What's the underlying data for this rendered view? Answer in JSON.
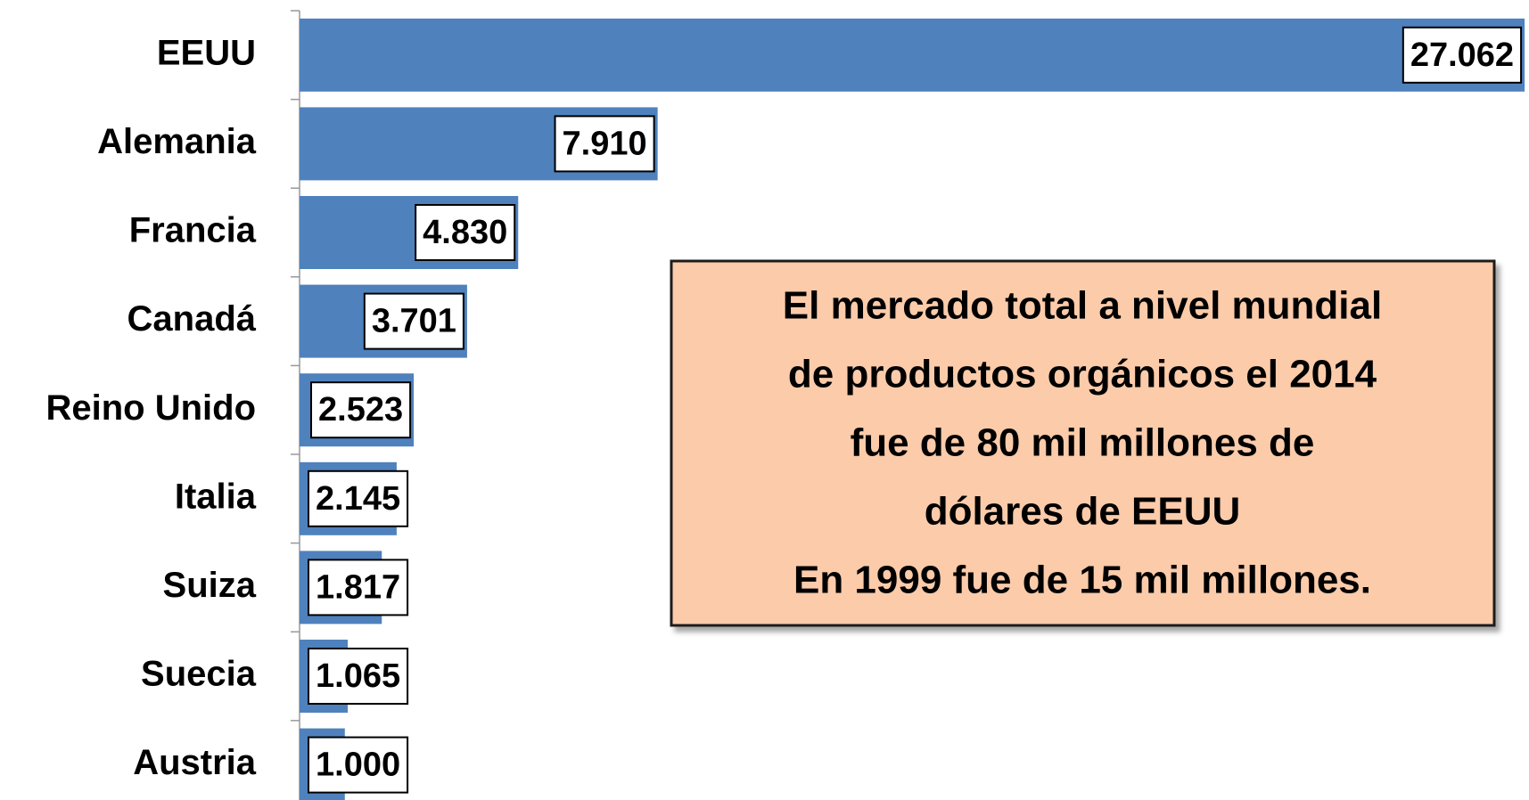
{
  "chart_data": {
    "type": "bar",
    "orientation": "horizontal",
    "categories": [
      "EEUU",
      "Alemania",
      "Francia",
      "Canadá",
      "Reino Unido",
      "Italia",
      "Suiza",
      "Suecia",
      "Austria"
    ],
    "values": [
      27062,
      7910,
      4830,
      3701,
      2523,
      2145,
      1817,
      1065,
      1000
    ],
    "value_labels": [
      "27.062",
      "7.910",
      "4.830",
      "3.701",
      "2.523",
      "2.145",
      "1.817",
      "1.065",
      "1.000"
    ],
    "color": "#4f81bd",
    "xlim": [
      0,
      27100
    ],
    "annotation": {
      "lines": [
        "El mercado total a nivel mundial",
        "de productos  orgánicos el 2014",
        "fue de  80 mil millones de",
        "dólares de EEUU",
        "En 1999 fue de 15 mil millones."
      ],
      "fill": "#fbcbaa"
    }
  }
}
